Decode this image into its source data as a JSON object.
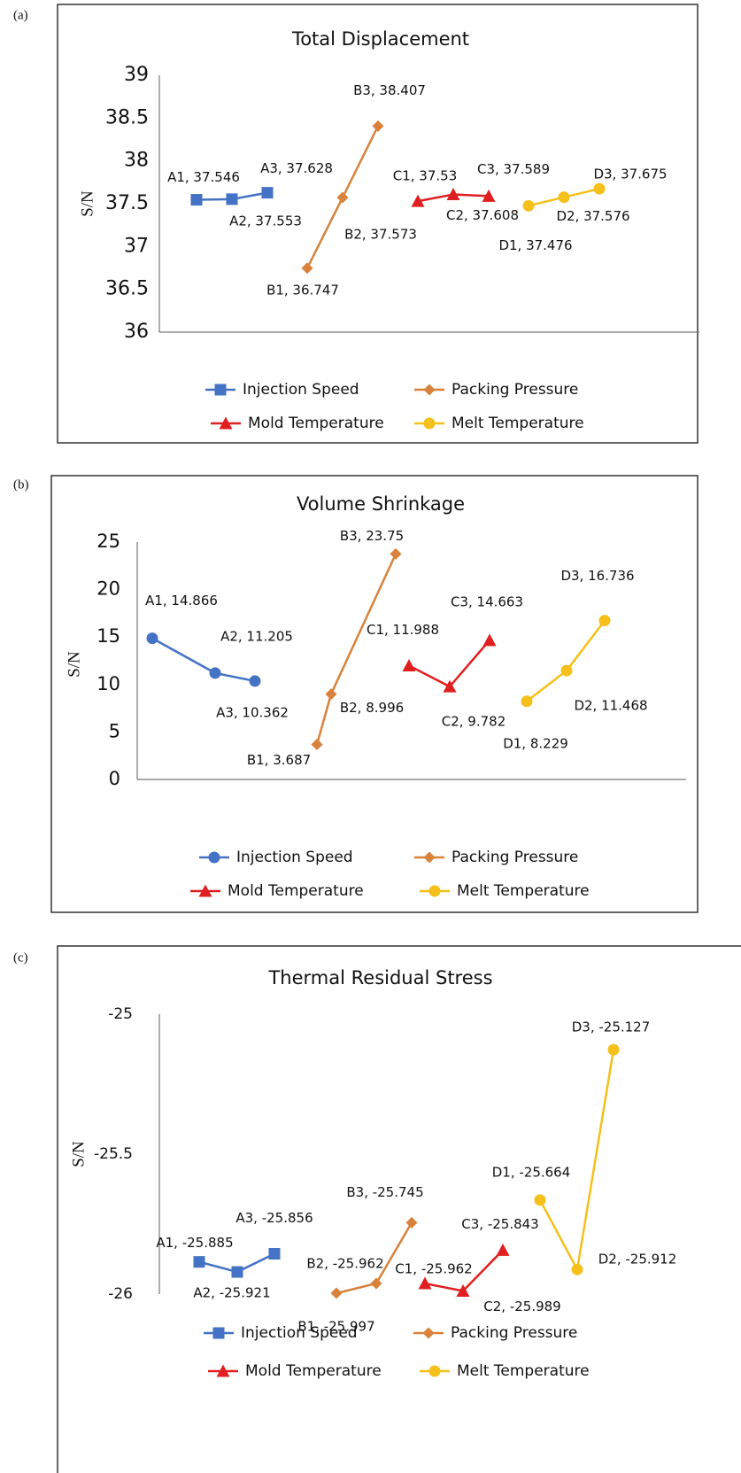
{
  "chart_data": [
    {
      "type": "line",
      "panel": "(a)",
      "title": "Total Displacement",
      "y_label": "S/N",
      "categories": [
        null,
        null,
        null,
        null,
        null,
        null,
        null,
        null,
        null,
        null,
        null,
        null
      ],
      "ylim": [
        36,
        39
      ],
      "yticks": [
        36,
        36.5,
        37,
        37.5,
        38,
        38.5,
        39
      ],
      "series": [
        {
          "name": "Injection Speed",
          "color": "#4472c4",
          "marker": "square",
          "values": [
            37.546,
            37.553,
            37.628,
            null,
            null,
            null,
            null,
            null,
            null,
            null,
            null,
            null
          ],
          "value_labels": [
            "A1, 37.546",
            "A2, 37.553",
            "A3, 37.628",
            null,
            null,
            null,
            null,
            null,
            null,
            null,
            null,
            null
          ]
        },
        {
          "name": "Packing Pressure",
          "color": "#d9823b",
          "marker": "diamond",
          "values": [
            null,
            null,
            null,
            36.747,
            37.573,
            38.407,
            null,
            null,
            null,
            null,
            null,
            null
          ],
          "value_labels": [
            null,
            null,
            null,
            "B1, 36.747",
            "B2, 37.573",
            "B3, 38.407",
            null,
            null,
            null,
            null,
            null,
            null
          ]
        },
        {
          "name": "Mold Temperature",
          "color": "#e02020",
          "marker": "triangle",
          "values": [
            null,
            null,
            null,
            null,
            null,
            null,
            37.53,
            37.608,
            37.589,
            null,
            null,
            null
          ],
          "value_labels": [
            null,
            null,
            null,
            null,
            null,
            null,
            "C1, 37.53",
            "C2, 37.608",
            "C3, 37.589",
            null,
            null,
            null
          ]
        },
        {
          "name": "Melt Temperature",
          "color": "#f5c01a",
          "marker": "circle",
          "values": [
            null,
            null,
            null,
            null,
            null,
            null,
            null,
            null,
            null,
            37.476,
            37.576,
            37.675
          ],
          "value_labels": [
            null,
            null,
            null,
            null,
            null,
            null,
            null,
            null,
            null,
            "D1, 37.476",
            "D2, 37.576",
            "D3, 37.675"
          ]
        }
      ]
    },
    {
      "type": "line",
      "panel": "(b)",
      "title": "Volume Shrinkage",
      "y_label": "S/N",
      "categories": [
        null,
        null,
        null,
        null,
        null,
        null,
        null,
        null,
        null,
        null,
        null,
        null
      ],
      "ylim": [
        0,
        25
      ],
      "yticks": [
        0,
        5,
        10,
        15,
        20,
        25
      ],
      "series": [
        {
          "name": "Injection Speed",
          "color": "#4472c4",
          "marker": "circle",
          "values": [
            14.866,
            11.205,
            10.362,
            null,
            null,
            null,
            null,
            null,
            null,
            null,
            null,
            null
          ],
          "value_labels": [
            "A1, 14.866",
            "A2, 11.205",
            "A3, 10.362",
            null,
            null,
            null,
            null,
            null,
            null,
            null,
            null,
            null
          ]
        },
        {
          "name": "Packing Pressure",
          "color": "#d9823b",
          "marker": "diamond",
          "values": [
            null,
            null,
            null,
            3.687,
            8.996,
            23.75,
            null,
            null,
            null,
            null,
            null,
            null
          ],
          "value_labels": [
            null,
            null,
            null,
            "B1, 3.687",
            "B2, 8.996",
            "B3, 23.75",
            null,
            null,
            null,
            null,
            null,
            null
          ]
        },
        {
          "name": "Mold Temperature",
          "color": "#e02020",
          "marker": "triangle",
          "values": [
            null,
            null,
            null,
            null,
            null,
            null,
            11.988,
            9.782,
            14.663,
            null,
            null,
            null
          ],
          "value_labels": [
            null,
            null,
            null,
            null,
            null,
            null,
            "C1, 11.988",
            "C2, 9.782",
            "C3, 14.663",
            null,
            null,
            null
          ]
        },
        {
          "name": "Melt Temperature",
          "color": "#f5c01a",
          "marker": "circle",
          "values": [
            null,
            null,
            null,
            null,
            null,
            null,
            null,
            null,
            null,
            8.229,
            11.468,
            16.736
          ],
          "value_labels": [
            null,
            null,
            null,
            null,
            null,
            null,
            null,
            null,
            null,
            "D1, 8.229",
            "D2, 11.468",
            "D3, 16.736"
          ]
        }
      ]
    },
    {
      "type": "line",
      "panel": "(c)",
      "title": "Thermal Residual Stress",
      "y_label": "S/N",
      "categories": [
        null,
        null,
        null,
        null,
        null,
        null,
        null,
        null,
        null,
        null,
        null,
        null
      ],
      "ylim": [
        -26,
        -25
      ],
      "yticks": [
        -26,
        -25.5,
        -25
      ],
      "series": [
        {
          "name": "Injection Speed",
          "color": "#4472c4",
          "marker": "square",
          "values": [
            -25.885,
            -25.921,
            -25.856,
            null,
            null,
            null,
            null,
            null,
            null,
            null,
            null,
            null
          ],
          "value_labels": [
            "A1, -25.885",
            "A2, -25.921",
            "A3, -25.856",
            null,
            null,
            null,
            null,
            null,
            null,
            null,
            null,
            null
          ]
        },
        {
          "name": "Packing Pressure",
          "color": "#d9823b",
          "marker": "diamond",
          "values": [
            null,
            null,
            null,
            -25.997,
            -25.962,
            -25.745,
            null,
            null,
            null,
            null,
            null,
            null
          ],
          "value_labels": [
            null,
            null,
            null,
            "B1, -25.997",
            "B2, -25.962",
            "B3, -25.745",
            null,
            null,
            null,
            null,
            null,
            null
          ]
        },
        {
          "name": "Mold Temperature",
          "color": "#e02020",
          "marker": "triangle",
          "values": [
            null,
            null,
            null,
            null,
            null,
            null,
            -25.962,
            -25.989,
            -25.843,
            null,
            null,
            null
          ],
          "value_labels": [
            null,
            null,
            null,
            null,
            null,
            null,
            "C1, -25.962",
            "C2, -25.989",
            "C3, -25.843",
            null,
            null,
            null
          ]
        },
        {
          "name": "Melt Temperature",
          "color": "#f5c01a",
          "marker": "circle",
          "values": [
            null,
            null,
            null,
            null,
            null,
            null,
            null,
            null,
            null,
            -25.664,
            -25.912,
            -25.127
          ],
          "value_labels": [
            null,
            null,
            null,
            null,
            null,
            null,
            null,
            null,
            null,
            "D1, -25.664",
            "D2, -25.912",
            "D3, -25.127"
          ]
        }
      ]
    }
  ]
}
